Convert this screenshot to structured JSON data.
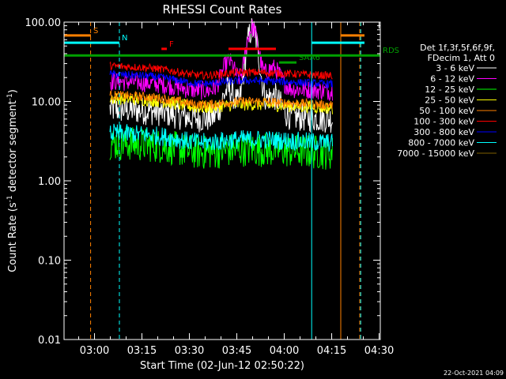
{
  "chart_data": {
    "type": "line",
    "title": "RHESSI Count Rates",
    "xlabel": "Start Time (02-Jun-12 02:50:22)",
    "ylabel_parts": [
      "Count Rate (s",
      "-1",
      " detector segment",
      "-1",
      ")"
    ],
    "ylim": [
      0.01,
      100
    ],
    "log_y": true,
    "xlim_minutes": [
      0,
      100
    ],
    "x_ticks": [
      {
        "label": "03:00",
        "min": 9.63
      },
      {
        "label": "03:15",
        "min": 24.63
      },
      {
        "label": "03:30",
        "min": 39.63
      },
      {
        "label": "03:45",
        "min": 54.63
      },
      {
        "label": "04:00",
        "min": 69.63
      },
      {
        "label": "04:15",
        "min": 84.63
      },
      {
        "label": "04:30",
        "min": 99.63
      }
    ],
    "y_ticks": [
      {
        "label": "100.00",
        "value": 100
      },
      {
        "label": "10.00",
        "value": 10
      },
      {
        "label": "1.00",
        "value": 1
      },
      {
        "label": "0.10",
        "value": 0.1
      },
      {
        "label": "0.01",
        "value": 0.01
      }
    ],
    "legend_header": [
      "Det 1f,3f,5f,6f,9f,",
      "FDecim 1, Att 0"
    ],
    "data_window_minutes": [
      14.5,
      85.0
    ],
    "series": [
      {
        "name": "3 - 6 keV",
        "color": "#ffffff",
        "level": 8.0,
        "flare_peak": 80,
        "noise": 0.18
      },
      {
        "name": "6 - 12 keV",
        "color": "#ff00ff",
        "level": 18.0,
        "flare_peak": 85,
        "noise": 0.12
      },
      {
        "name": "12 - 25 keV",
        "color": "#00ff00",
        "level": 3.0,
        "flare_peak": 4,
        "noise": 0.22
      },
      {
        "name": "25 - 50 keV",
        "color": "#ffff00",
        "level": 11.0,
        "flare_peak": 12,
        "noise": 0.08
      },
      {
        "name": "50 - 100 keV",
        "color": "#ff8000",
        "level": 12.0,
        "flare_peak": 13,
        "noise": 0.06
      },
      {
        "name": "100 - 300 keV",
        "color": "#ff0000",
        "level": 28.0,
        "flare_peak": 30,
        "noise": 0.05
      },
      {
        "name": "300 - 800 keV",
        "color": "#0000ff",
        "level": 22.0,
        "flare_peak": 24,
        "noise": 0.05
      },
      {
        "name": "800 - 7000 keV",
        "color": "#00ffff",
        "level": 4.0,
        "flare_peak": 4.5,
        "noise": 0.12
      },
      {
        "name": "7000 - 15000 keV",
        "color": "#806000",
        "level": 0.0,
        "flare_peak": 0,
        "noise": 0
      }
    ],
    "flare_center_minutes": 59.5,
    "time_bars": [
      {
        "label": "S",
        "color": "#ff8000",
        "min_start": 0,
        "min_end": 8.5,
        "y_value": 68,
        "segments": [
          [
            0,
            8.5
          ],
          [
            87.5,
            95
          ]
        ]
      },
      {
        "label": "N",
        "color": "#00ffff",
        "min_start": 0,
        "min_end": 17.5,
        "y_value": 55,
        "segments": [
          [
            0,
            17.5
          ],
          [
            78.3,
            95
          ]
        ]
      },
      {
        "label": "F",
        "color": "#ff0000",
        "min_start": 30.8,
        "min_end": 32.5,
        "y_value": 46,
        "segments": [
          [
            30.8,
            32.5
          ]
        ]
      },
      {
        "label": "",
        "color": "#ff0000",
        "min_start": 52.0,
        "min_end": 67.0,
        "y_value": 46,
        "segments": [
          [
            52.0,
            67.0
          ]
        ]
      },
      {
        "label": "RDS",
        "color": "#00a000",
        "min_start": 0,
        "min_end": 100,
        "y_value": 38,
        "segments": [
          [
            0,
            100
          ]
        ]
      },
      {
        "label": "SAA6",
        "color": "#00a000",
        "min_start": 68.0,
        "min_end": 73.5,
        "y_value": 31,
        "segments": [
          [
            68.0,
            73.5
          ]
        ]
      }
    ],
    "vertical_lines": [
      {
        "min": 8.4,
        "color": "#ff8000",
        "dashed": true
      },
      {
        "min": 17.5,
        "color": "#00ffff",
        "dashed": true
      },
      {
        "min": 78.3,
        "color": "#00ffff",
        "dashed": false
      },
      {
        "min": 87.5,
        "color": "#ff8000",
        "dashed": false
      },
      {
        "min": 93.5,
        "color": "#ff8000",
        "dashed": true
      },
      {
        "min": 93.8,
        "color": "#00ffff",
        "dashed": true
      }
    ],
    "footer_text": "22-Oct-2021 04:09"
  }
}
